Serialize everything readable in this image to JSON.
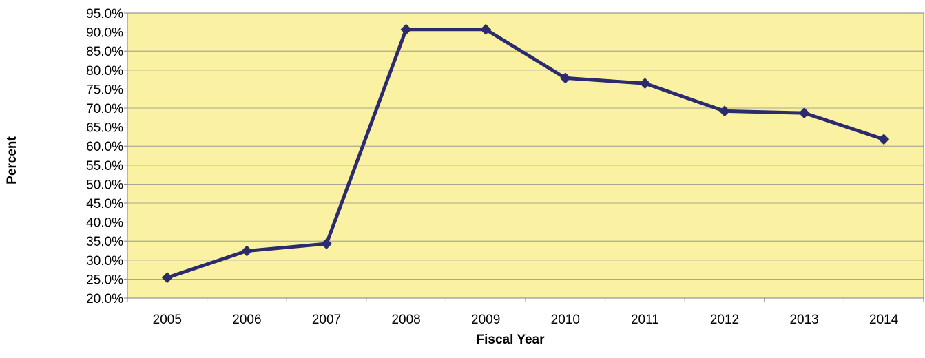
{
  "chart_data": {
    "type": "line",
    "title": "",
    "xlabel": "Fiscal Year",
    "ylabel": "Percent",
    "categories": [
      "2005",
      "2006",
      "2007",
      "2008",
      "2009",
      "2010",
      "2011",
      "2012",
      "2013",
      "2014"
    ],
    "series": [
      {
        "values": [
          25.4,
          32.4,
          34.3,
          90.7,
          90.7,
          77.9,
          76.5,
          69.2,
          68.7,
          61.8
        ],
        "marker": "diamond"
      }
    ],
    "ylim": [
      20,
      95
    ],
    "y_ticks": [
      "20.0%",
      "25.0%",
      "30.0%",
      "35.0%",
      "40.0%",
      "45.0%",
      "50.0%",
      "55.0%",
      "60.0%",
      "65.0%",
      "70.0%",
      "75.0%",
      "80.0%",
      "85.0%",
      "90.0%",
      "95.0%"
    ],
    "grid": true,
    "legend": "none"
  },
  "colors": {
    "plot_background": "#faf1a2",
    "line": "#2b2b6d",
    "grid": "#8c8c8c",
    "axis": "#808080"
  }
}
